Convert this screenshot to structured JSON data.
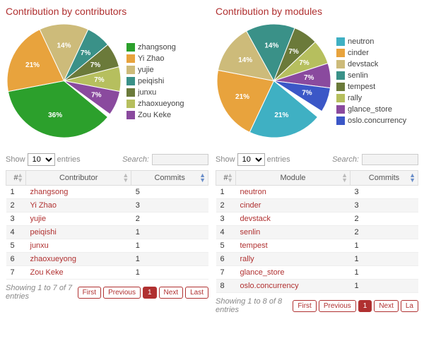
{
  "panels": [
    {
      "title": "Contribution by contributors",
      "chart": {
        "type": "pie",
        "slices": [
          {
            "label": "zhangsong",
            "pct": 36,
            "color": "#2ca02c",
            "show_pct": true
          },
          {
            "label": "Yi Zhao",
            "pct": 21,
            "color": "#e8a33d",
            "show_pct": true
          },
          {
            "label": "yujie",
            "pct": 14,
            "color": "#cdbb7a",
            "show_pct": true
          },
          {
            "label": "peiqishi",
            "pct": 7,
            "color": "#3a9188",
            "show_pct": true
          },
          {
            "label": "junxu",
            "pct": 7,
            "color": "#6b7a3a",
            "show_pct": true
          },
          {
            "label": "zhaoxueyong",
            "pct": 7,
            "color": "#b6bf5e",
            "show_pct": true
          },
          {
            "label": "Zou Keke",
            "pct": 7,
            "color": "#8a4a9e",
            "show_pct": true
          }
        ],
        "background_color": "#ffffff",
        "label_color": "#ffffff",
        "label_fontsize": 10
      },
      "table": {
        "show_entries_label_left": "Show",
        "show_entries_label_right": "entries",
        "show_entries_value": "10",
        "search_label": "Search:",
        "search_value": "",
        "columns": [
          "#",
          "Contributor",
          "Commits"
        ],
        "sorted_col": 2,
        "sorted_dir": "desc",
        "rows": [
          [
            1,
            "zhangsong",
            5
          ],
          [
            2,
            "Yi Zhao",
            3
          ],
          [
            3,
            "yujie",
            2
          ],
          [
            4,
            "peiqishi",
            1
          ],
          [
            5,
            "junxu",
            1
          ],
          [
            6,
            "zhaoxueyong",
            1
          ],
          [
            7,
            "Zou Keke",
            1
          ]
        ],
        "info": "Showing 1 to 7 of 7 entries",
        "pager": {
          "first": "First",
          "prev": "Previous",
          "current": "1",
          "next": "Next",
          "last": "Last"
        }
      }
    },
    {
      "title": "Contribution by modules",
      "chart": {
        "type": "pie",
        "slices": [
          {
            "label": "neutron",
            "pct": 21,
            "color": "#3fb0c3",
            "show_pct": true
          },
          {
            "label": "cinder",
            "pct": 21,
            "color": "#e8a33d",
            "show_pct": true
          },
          {
            "label": "devstack",
            "pct": 14,
            "color": "#cdbb7a",
            "show_pct": true
          },
          {
            "label": "senlin",
            "pct": 14,
            "color": "#3a9188",
            "show_pct": true
          },
          {
            "label": "tempest",
            "pct": 7,
            "color": "#6b7a3a",
            "show_pct": true
          },
          {
            "label": "rally",
            "pct": 7,
            "color": "#b6bf5e",
            "show_pct": true
          },
          {
            "label": "glance_store",
            "pct": 7,
            "color": "#8a4a9e",
            "show_pct": true
          },
          {
            "label": "oslo.concurrency",
            "pct": 7,
            "color": "#3b57c7",
            "show_pct": true
          }
        ],
        "background_color": "#ffffff",
        "label_color": "#ffffff",
        "label_fontsize": 10
      },
      "table": {
        "show_entries_label_left": "Show",
        "show_entries_label_right": "entries",
        "show_entries_value": "10",
        "search_label": "Search:",
        "search_value": "",
        "columns": [
          "#",
          "Module",
          "Commits"
        ],
        "sorted_col": 2,
        "sorted_dir": "desc",
        "rows": [
          [
            1,
            "neutron",
            3
          ],
          [
            2,
            "cinder",
            3
          ],
          [
            3,
            "devstack",
            2
          ],
          [
            4,
            "senlin",
            2
          ],
          [
            5,
            "tempest",
            1
          ],
          [
            6,
            "rally",
            1
          ],
          [
            7,
            "glance_store",
            1
          ],
          [
            8,
            "oslo.concurrency",
            1
          ]
        ],
        "info": "Showing 1 to 8 of 8 entries",
        "pager": {
          "first": "First",
          "prev": "Previous",
          "current": "1",
          "next": "Next",
          "last": "La"
        }
      }
    }
  ]
}
